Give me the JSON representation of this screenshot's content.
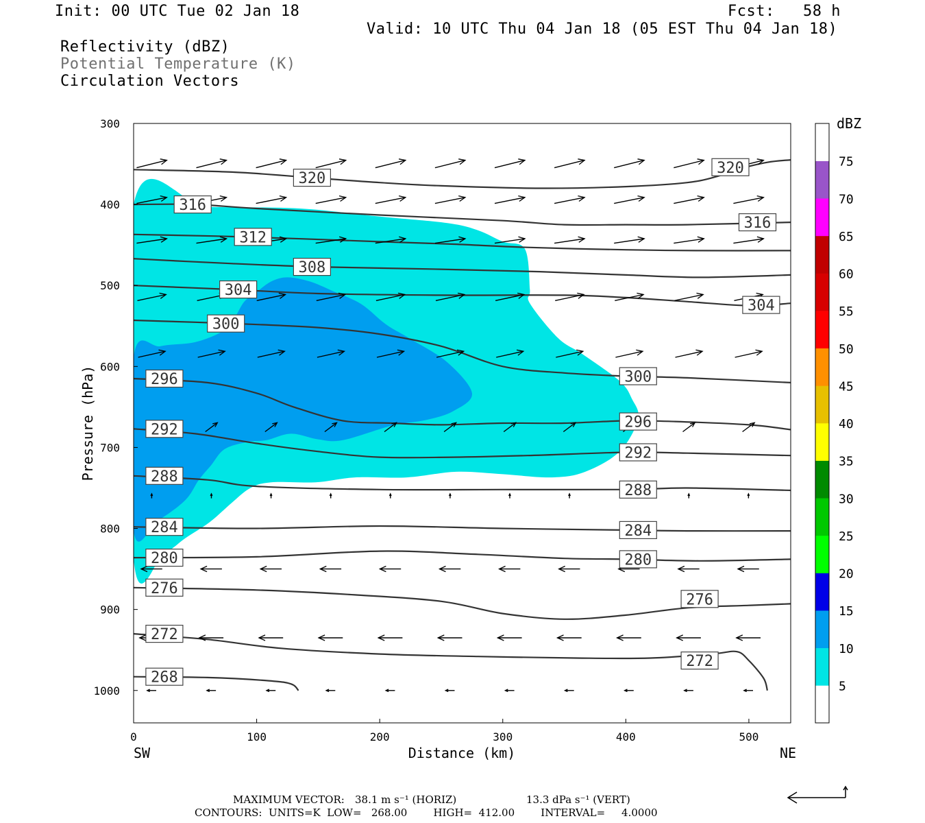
{
  "header": {
    "init": "Init: 00 UTC Tue 02 Jan 18",
    "fcst": "Fcst:   58 h",
    "valid": "Valid: 10 UTC Thu 04 Jan 18 (05 EST Thu 04 Jan 18)",
    "field1": "Reflectivity (dBZ)",
    "field2": "Potential Temperature (K)",
    "field3": "Circulation Vectors"
  },
  "footer": {
    "max_vector_label": "MAXIMUM VECTOR:",
    "max_vector_horiz": "38.1 m s⁻¹ (HORIZ)",
    "max_vector_vert": "13.3 dPa s⁻¹ (VERT)",
    "contours": "CONTOURS:  UNITS=K  LOW=   268.00        HIGH=  412.00        INTERVAL=     4.0000"
  },
  "chart_data": {
    "type": "cross-section",
    "xlabel": "Distance (km)",
    "ylabel": "Pressure (hPa)",
    "x_left_label": "SW",
    "x_right_label": "NE",
    "xlim": [
      0,
      534
    ],
    "ylim": [
      1040,
      300
    ],
    "x_ticks": [
      0,
      100,
      200,
      300,
      400,
      500
    ],
    "y_ticks": [
      300,
      400,
      500,
      600,
      700,
      800,
      900,
      1000
    ],
    "colorbar": {
      "title": "dBZ",
      "levels": [
        5,
        10,
        15,
        20,
        25,
        30,
        35,
        40,
        45,
        50,
        55,
        60,
        65,
        70,
        75
      ],
      "colors": [
        "#ffffff",
        "#00e5e5",
        "#009eef",
        "#0000e8",
        "#00ff00",
        "#00c800",
        "#008a00",
        "#ffff00",
        "#e7c000",
        "#ff9000",
        "#ff0000",
        "#d70000",
        "#c00000",
        "#ff00ff",
        "#9955c9",
        "#ffffff"
      ]
    },
    "reflectivity_regions": [
      {
        "dbz": 5,
        "color": "#00e5e5",
        "points": [
          [
            0,
            400
          ],
          [
            60,
            403
          ],
          [
            135,
            405
          ],
          [
            200,
            415
          ],
          [
            255,
            423
          ],
          [
            280,
            432
          ],
          [
            300,
            446
          ],
          [
            318,
            455
          ],
          [
            322,
            505
          ],
          [
            322,
            522
          ],
          [
            345,
            565
          ],
          [
            365,
            585
          ],
          [
            395,
            618
          ],
          [
            405,
            640
          ],
          [
            410,
            665
          ],
          [
            395,
            705
          ],
          [
            367,
            730
          ],
          [
            340,
            737
          ],
          [
            300,
            733
          ],
          [
            262,
            730
          ],
          [
            222,
            737
          ],
          [
            180,
            737
          ],
          [
            148,
            743
          ],
          [
            112,
            743
          ],
          [
            95,
            750
          ],
          [
            80,
            768
          ],
          [
            62,
            792
          ],
          [
            42,
            812
          ],
          [
            25,
            830
          ],
          [
            0,
            837
          ]
        ]
      },
      {
        "dbz": 10,
        "color": "#009eef",
        "points": [
          [
            0,
            588
          ],
          [
            22,
            575
          ],
          [
            50,
            570
          ],
          [
            73,
            556
          ],
          [
            82,
            540
          ],
          [
            90,
            520
          ],
          [
            100,
            508
          ],
          [
            112,
            495
          ],
          [
            125,
            490
          ],
          [
            143,
            495
          ],
          [
            162,
            507
          ],
          [
            185,
            523
          ],
          [
            205,
            548
          ],
          [
            225,
            566
          ],
          [
            255,
            595
          ],
          [
            275,
            633
          ],
          [
            260,
            655
          ],
          [
            238,
            666
          ],
          [
            210,
            673
          ],
          [
            170,
            691
          ],
          [
            150,
            690
          ],
          [
            128,
            683
          ],
          [
            108,
            691
          ],
          [
            93,
            693
          ],
          [
            74,
            702
          ],
          [
            63,
            722
          ],
          [
            53,
            740
          ],
          [
            42,
            765
          ],
          [
            20,
            790
          ],
          [
            0,
            803
          ]
        ]
      }
    ],
    "theta_contours": [
      {
        "value": 268,
        "points": [
          [
            0,
            983
          ],
          [
            60,
            984
          ],
          [
            110,
            988
          ],
          [
            128,
            992
          ],
          [
            134,
            1000
          ]
        ],
        "labels": [
          [
            25,
            983
          ]
        ]
      },
      {
        "value": 272,
        "points": [
          [
            0,
            930
          ],
          [
            60,
            937
          ],
          [
            120,
            948
          ],
          [
            200,
            955
          ],
          [
            280,
            958
          ],
          [
            360,
            960
          ],
          [
            420,
            960
          ],
          [
            470,
            955
          ],
          [
            490,
            952
          ],
          [
            500,
            963
          ],
          [
            512,
            985
          ],
          [
            515,
            1000
          ]
        ],
        "labels": [
          [
            25,
            930
          ],
          [
            460,
            963
          ]
        ]
      },
      {
        "value": 276,
        "points": [
          [
            0,
            873
          ],
          [
            100,
            876
          ],
          [
            180,
            882
          ],
          [
            250,
            890
          ],
          [
            300,
            905
          ],
          [
            350,
            912
          ],
          [
            400,
            907
          ],
          [
            450,
            898
          ],
          [
            500,
            895
          ],
          [
            534,
            893
          ]
        ],
        "labels": [
          [
            25,
            873
          ],
          [
            460,
            887
          ]
        ]
      },
      {
        "value": 280,
        "points": [
          [
            0,
            836
          ],
          [
            100,
            835
          ],
          [
            200,
            828
          ],
          [
            280,
            832
          ],
          [
            350,
            837
          ],
          [
            400,
            838
          ],
          [
            460,
            840
          ],
          [
            534,
            838
          ]
        ],
        "labels": [
          [
            25,
            836
          ],
          [
            410,
            838
          ]
        ]
      },
      {
        "value": 284,
        "points": [
          [
            0,
            798
          ],
          [
            100,
            800
          ],
          [
            200,
            797
          ],
          [
            300,
            800
          ],
          [
            400,
            802
          ],
          [
            450,
            803
          ],
          [
            534,
            803
          ]
        ],
        "labels": [
          [
            25,
            798
          ],
          [
            410,
            802
          ]
        ]
      },
      {
        "value": 288,
        "points": [
          [
            0,
            735
          ],
          [
            60,
            740
          ],
          [
            100,
            748
          ],
          [
            200,
            752
          ],
          [
            300,
            752
          ],
          [
            400,
            752
          ],
          [
            450,
            750
          ],
          [
            534,
            753
          ]
        ],
        "labels": [
          [
            25,
            735
          ],
          [
            410,
            752
          ]
        ]
      },
      {
        "value": 292,
        "points": [
          [
            0,
            677
          ],
          [
            50,
            683
          ],
          [
            100,
            695
          ],
          [
            150,
            705
          ],
          [
            200,
            712
          ],
          [
            260,
            712
          ],
          [
            320,
            710
          ],
          [
            400,
            706
          ],
          [
            450,
            707
          ],
          [
            534,
            710
          ]
        ],
        "labels": [
          [
            25,
            677
          ],
          [
            410,
            706
          ]
        ]
      },
      {
        "value": 296,
        "points": [
          [
            0,
            615
          ],
          [
            60,
            620
          ],
          [
            100,
            633
          ],
          [
            130,
            650
          ],
          [
            170,
            667
          ],
          [
            210,
            670
          ],
          [
            250,
            672
          ],
          [
            300,
            670
          ],
          [
            350,
            670
          ],
          [
            400,
            667
          ],
          [
            440,
            668
          ],
          [
            500,
            672
          ],
          [
            534,
            678
          ]
        ],
        "labels": [
          [
            25,
            615
          ],
          [
            410,
            668
          ]
        ]
      },
      {
        "value": 300,
        "points": [
          [
            0,
            543
          ],
          [
            80,
            547
          ],
          [
            150,
            552
          ],
          [
            200,
            560
          ],
          [
            250,
            575
          ],
          [
            300,
            600
          ],
          [
            350,
            608
          ],
          [
            400,
            612
          ],
          [
            450,
            614
          ],
          [
            534,
            620
          ]
        ],
        "labels": [
          [
            75,
            547
          ],
          [
            410,
            612
          ]
        ]
      },
      {
        "value": 304,
        "points": [
          [
            0,
            500
          ],
          [
            80,
            505
          ],
          [
            150,
            510
          ],
          [
            250,
            512
          ],
          [
            350,
            512
          ],
          [
            400,
            515
          ],
          [
            450,
            520
          ],
          [
            500,
            525
          ],
          [
            534,
            522
          ]
        ],
        "labels": [
          [
            85,
            505
          ],
          [
            510,
            524
          ]
        ]
      },
      {
        "value": 308,
        "points": [
          [
            0,
            467
          ],
          [
            80,
            473
          ],
          [
            150,
            477
          ],
          [
            250,
            480
          ],
          [
            330,
            483
          ],
          [
            400,
            487
          ],
          [
            460,
            490
          ],
          [
            534,
            487
          ]
        ],
        "labels": [
          [
            145,
            477
          ]
        ]
      },
      {
        "value": 312,
        "points": [
          [
            0,
            437
          ],
          [
            90,
            440
          ],
          [
            200,
            446
          ],
          [
            260,
            449
          ],
          [
            320,
            453
          ],
          [
            400,
            456
          ],
          [
            460,
            457
          ],
          [
            534,
            457
          ]
        ],
        "labels": [
          [
            97,
            440
          ]
        ]
      },
      {
        "value": 316,
        "points": [
          [
            0,
            400
          ],
          [
            50,
            400
          ],
          [
            100,
            405
          ],
          [
            200,
            413
          ],
          [
            300,
            420
          ],
          [
            350,
            425
          ],
          [
            400,
            425
          ],
          [
            450,
            425
          ],
          [
            534,
            422
          ]
        ],
        "labels": [
          [
            48,
            400
          ],
          [
            507,
            422
          ]
        ]
      },
      {
        "value": 320,
        "points": [
          [
            0,
            357
          ],
          [
            80,
            360
          ],
          [
            145,
            367
          ],
          [
            200,
            373
          ],
          [
            250,
            377
          ],
          [
            330,
            380
          ],
          [
            400,
            378
          ],
          [
            450,
            373
          ],
          [
            475,
            365
          ],
          [
            490,
            357
          ],
          [
            515,
            348
          ],
          [
            534,
            345
          ]
        ],
        "labels": [
          [
            145,
            367
          ],
          [
            485,
            354
          ]
        ]
      }
    ],
    "circulation_vectors": [
      {
        "p": 350,
        "u": 20,
        "v": 5
      },
      {
        "p": 395,
        "u": 20,
        "v": 4
      },
      {
        "p": 445,
        "u": 20,
        "v": 3
      },
      {
        "p": 515,
        "u": 19,
        "v": 4
      },
      {
        "p": 585,
        "u": 18,
        "v": 4
      },
      {
        "p": 675,
        "u": 8,
        "v": 6
      },
      {
        "p": 760,
        "u": 0,
        "v": 3
      },
      {
        "p": 850,
        "u": -14,
        "v": 0
      },
      {
        "p": 935,
        "u": -16,
        "v": 0
      },
      {
        "p": 1000,
        "u": -6,
        "v": 0
      }
    ],
    "reference_vector": {
      "horiz": 38.1,
      "vert": 13.3
    }
  }
}
